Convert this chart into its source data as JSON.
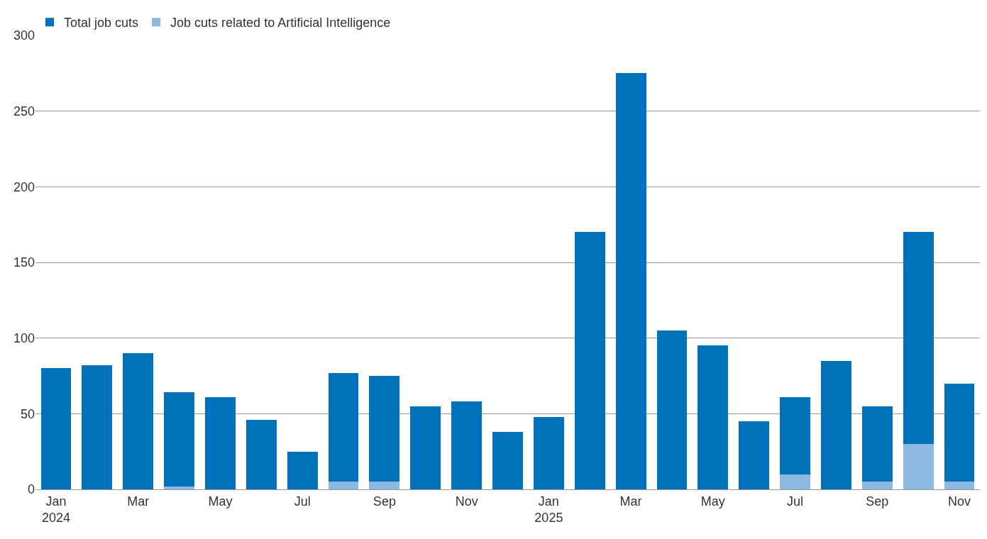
{
  "chart_data": {
    "type": "bar",
    "stacked": true,
    "categories": [
      "Jan\n2024",
      null,
      "Mar",
      null,
      "May",
      null,
      "Jul",
      null,
      "Sep",
      null,
      "Nov",
      null,
      "Jan\n2025",
      null,
      "Mar",
      null,
      "May",
      null,
      "Jul",
      null,
      "Sep",
      null,
      "Nov"
    ],
    "series": [
      {
        "name": "Job cuts related to Artificial Intelligence",
        "color": "#8cb8e2",
        "values": [
          0,
          0,
          0,
          2,
          0,
          0,
          0,
          5,
          5,
          0,
          0,
          0,
          0,
          0,
          0,
          0,
          0,
          0,
          10,
          0,
          5,
          30,
          5
        ]
      },
      {
        "name": "Total job cuts",
        "color": "#0072bc",
        "values": [
          80,
          82,
          90,
          62,
          61,
          46,
          25,
          72,
          70,
          55,
          58,
          38,
          48,
          170,
          275,
          105,
          95,
          45,
          51,
          85,
          50,
          140,
          65
        ]
      }
    ],
    "ylim": [
      0,
      300
    ],
    "yticks": [
      0,
      50,
      100,
      150,
      200,
      250,
      300
    ],
    "grid": "y",
    "legend": "top left"
  }
}
